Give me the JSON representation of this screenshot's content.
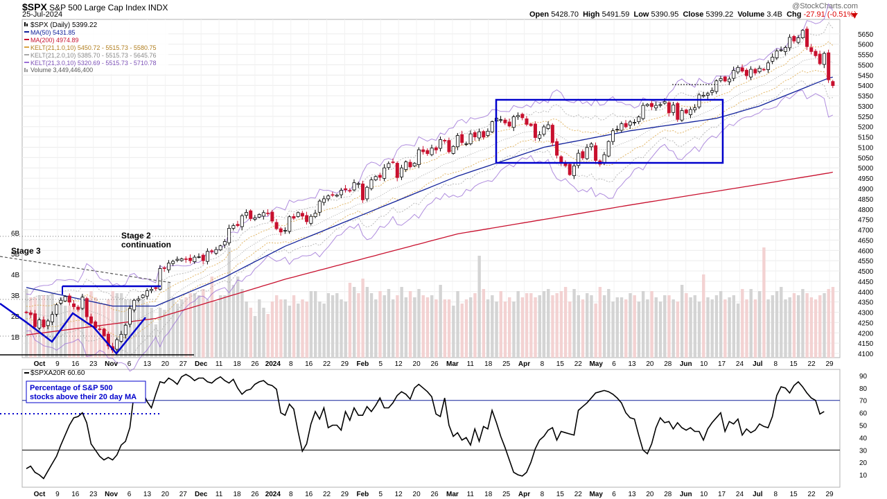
{
  "header": {
    "symbol": "$SPX",
    "name": "S&P 500 Large Cap Index",
    "exchange": "INDX",
    "date": "25-Jul-2024",
    "credit": "@StockCharts.com",
    "quote": {
      "open_label": "Open",
      "open": "5428.70",
      "high_label": "High",
      "high": "5491.59",
      "low_label": "Low",
      "low": "5390.95",
      "close_label": "Close",
      "close": "5399.22",
      "volume_label": "Volume",
      "volume": "3.4B",
      "chg_label": "Chg",
      "chg": "-27.91 (-0.51%)"
    }
  },
  "colors": {
    "up": "#000000",
    "down": "#c8102e",
    "ma50": "#10209a",
    "ma200": "#c8102e",
    "kelt1": "#d9a441",
    "kelt2": "#a8a8a8",
    "kelt3": "#9b6fd6",
    "box": "#0000cc",
    "vol_up": "#d4d4d4",
    "vol_down": "#f3d2d2",
    "breadth": "#000000"
  },
  "legend": [
    {
      "icon": "chart-icon",
      "text": "$SPX (Daily) 5399.22",
      "color": "#000000"
    },
    {
      "icon": "line-icon",
      "text": "MA(50) 5431.85",
      "color": "#10209a"
    },
    {
      "icon": "line-icon",
      "text": "MA(200) 4974.89",
      "color": "#c8102e"
    },
    {
      "icon": "line-icon",
      "text": "KELT(21,1.0,10) 5450.72 - 5515.73 - 5580.75",
      "color": "#d9a441"
    },
    {
      "icon": "line-icon",
      "text": "KELT(21,2.0,10) 5385.70 - 5515.73 - 5645.76",
      "color": "#a8a8a8"
    },
    {
      "icon": "line-icon",
      "text": "KELT(21,3.0,10) 5320.69 - 5515.73 - 5710.78",
      "color": "#9b6fd6"
    },
    {
      "icon": "volume-icon",
      "text": "Volume 3,449,446,400",
      "color": "#888888"
    }
  ],
  "annotations": {
    "stage3": "Stage 3",
    "stage2_line1": "Stage 2",
    "stage2_line2": "continuation",
    "breadth_note_line1": "Percentage of S&P 500",
    "breadth_note_line2": "stocks above their 20 day MA"
  },
  "chart_data": [
    {
      "type": "candlestick",
      "series_label": "$SPX (Daily)",
      "ylim": [
        4080,
        5720
      ],
      "y_ticks": [
        4100,
        4150,
        4200,
        4250,
        4300,
        4350,
        4400,
        4450,
        4500,
        4550,
        4600,
        4650,
        4700,
        4750,
        4800,
        4850,
        4900,
        4950,
        5000,
        5050,
        5100,
        5150,
        5200,
        5250,
        5300,
        5350,
        5400,
        5450,
        5500,
        5550,
        5600,
        5650
      ],
      "x_ticks": [
        "Oct",
        "9",
        "16",
        "23",
        "Nov",
        "6",
        "13",
        "20",
        "27",
        "Dec",
        "11",
        "18",
        "26",
        "2024",
        "8",
        "16",
        "22",
        "29",
        "Feb",
        "5",
        "12",
        "20",
        "26",
        "Mar",
        "11",
        "18",
        "25",
        "Apr",
        "8",
        "15",
        "22",
        "May",
        "6",
        "13",
        "20",
        "28",
        "Jun",
        "10",
        "17",
        "24",
        "Jul",
        "8",
        "15",
        "22",
        "29"
      ],
      "closes": [
        4299,
        4288,
        4230,
        4263,
        4229,
        4258,
        4289,
        4336,
        4358,
        4376,
        4349,
        4327,
        4314,
        4373,
        4278,
        4247,
        4224,
        4217,
        4186,
        4137,
        4117,
        4167,
        4193,
        4237,
        4318,
        4358,
        4365,
        4383,
        4404,
        4411,
        4415,
        4512,
        4514,
        4538,
        4547,
        4557,
        4559,
        4556,
        4550,
        4567,
        4569,
        4550,
        4595,
        4594,
        4604,
        4622,
        4643,
        4707,
        4720,
        4720,
        4768,
        4784,
        4754,
        4758,
        4774,
        4783,
        4781,
        4742,
        4705,
        4689,
        4697,
        4763,
        4756,
        4783,
        4766,
        4739,
        4765,
        4780,
        4839,
        4850,
        4864,
        4868,
        4868,
        4891,
        4894,
        4890,
        4928,
        4924,
        4845,
        4906,
        4942,
        4958,
        4954,
        5000,
        5021,
        5026,
        4953,
        5000,
        5029,
        5005,
        5022,
        5088,
        5078,
        5069,
        5096,
        5087,
        5137,
        5130,
        5078,
        5104,
        5157,
        5123,
        5117,
        5165,
        5150,
        5175,
        5149,
        5178,
        5224,
        5241,
        5234,
        5218,
        5203,
        5248,
        5254,
        5243,
        5211,
        5205,
        5147,
        5160,
        5199,
        5209,
        5123,
        5061,
        5023,
        5011,
        4967,
        5010,
        5071,
        5048,
        5099,
        5116,
        5036,
        5018,
        5064,
        5128,
        5180,
        5187,
        5214,
        5199,
        5223,
        5221,
        5247,
        5303,
        5308,
        5297,
        5303,
        5307,
        5321,
        5267,
        5305,
        5235,
        5278,
        5266,
        5283,
        5291,
        5354,
        5352,
        5360,
        5375,
        5422,
        5433,
        5421,
        5431,
        5473,
        5487,
        5469,
        5447,
        5478,
        5460,
        5483,
        5475,
        5509,
        5537,
        5567,
        5572,
        5584,
        5633,
        5615,
        5631,
        5667,
        5588,
        5564,
        5544,
        5505,
        5555,
        5427,
        5399
      ],
      "ma50_anchors": [
        [
          0,
          4420
        ],
        [
          20,
          4330
        ],
        [
          30,
          4330
        ],
        [
          46,
          4470
        ],
        [
          60,
          4620
        ],
        [
          80,
          4790
        ],
        [
          100,
          4960
        ],
        [
          120,
          5100
        ],
        [
          140,
          5180
        ],
        [
          160,
          5240
        ],
        [
          170,
          5300
        ],
        [
          186,
          5435
        ]
      ],
      "ma200_anchors": [
        [
          0,
          4190
        ],
        [
          30,
          4270
        ],
        [
          60,
          4460
        ],
        [
          100,
          4680
        ],
        [
          140,
          4820
        ],
        [
          170,
          4920
        ],
        [
          186,
          4975
        ]
      ]
    },
    {
      "type": "bar",
      "series_label": "Volume",
      "ylim": [
        0,
        7000000000
      ],
      "y_ticks": [
        "1B",
        "2B",
        "3B",
        "4B",
        "5B",
        "6B"
      ],
      "y_tick_values": [
        1000000000,
        2000000000,
        3000000000,
        4000000000,
        5000000000,
        6000000000
      ],
      "values": [
        3.3,
        2.9,
        2.9,
        3.0,
        3.0,
        3.0,
        3.1,
        2.4,
        2.9,
        2.5,
        2.5,
        2.6,
        2.4,
        3.0,
        2.6,
        3.2,
        2.9,
        2.6,
        2.6,
        2.8,
        3.2,
        3.1,
        3.1,
        2.8,
        2.8,
        2.6,
        2.7,
        2.8,
        2.6,
        2.4,
        1.6,
        2.4,
        2.3,
        3.6,
        2.9,
        2.6,
        2.8,
        2.9,
        3.1,
        3.1,
        3.0,
        3.3,
        2.8,
        3.9,
        2.7,
        3.0,
        3.0,
        5.3,
        3.5,
        3.9,
        3.3,
        2.7,
        2.4,
        2.0,
        2.8,
        2.4,
        2.1,
        2.7,
        3.0,
        2.8,
        2.8,
        2.5,
        3.0,
        2.6,
        2.8,
        2.7,
        3.2,
        3.2,
        2.7,
        2.6,
        3.1,
        3.0,
        3.1,
        2.8,
        2.7,
        3.6,
        3.4,
        3.1,
        3.8,
        3.4,
        3.1,
        2.8,
        3.2,
        3.0,
        3.3,
        2.8,
        3.0,
        3.4,
        2.9,
        3.2,
        2.9,
        3.3,
        3.0,
        2.9,
        3.0,
        2.8,
        3.5,
        2.8,
        2.8,
        2.5,
        3.2,
        2.6,
        2.8,
        2.9,
        3.1,
        4.9,
        3.3,
        2.8,
        3.0,
        2.7,
        3.2,
        2.7,
        2.9,
        2.7,
        3.2,
        2.9,
        3.1,
        3.1,
        2.9,
        3.0,
        3.2,
        3.3,
        3.0,
        3.1,
        3.2,
        3.4,
        2.7,
        3.3,
        3.0,
        2.8,
        3.1,
        3.0,
        2.6,
        3.4,
        3.0,
        3.3,
        2.7,
        2.9,
        2.9,
        2.8,
        3.1,
        3.0,
        2.7,
        3.2,
        2.8,
        3.2,
        2.9,
        2.7,
        3.0,
        3.0,
        2.8,
        2.7,
        3.5,
        3.1,
        2.9,
        3.0,
        2.7,
        4.0,
        2.9,
        2.8,
        3.0,
        3.2,
        2.8,
        2.9,
        3.0,
        2.6,
        3.3,
        2.8,
        3.3,
        2.8,
        3.2,
        5.3,
        2.8,
        3.0,
        3.2,
        3.4,
        2.8,
        2.9,
        3.1,
        3.0,
        3.3,
        3.1,
        2.9,
        2.8,
        3.0,
        3.1,
        3.3,
        3.4
      ]
    },
    {
      "type": "line",
      "series_label": "$SPXA20R",
      "value_text": "60.60",
      "ylim": [
        0,
        95
      ],
      "y_ticks": [
        10,
        20,
        30,
        40,
        50,
        60,
        70,
        80,
        90
      ],
      "reference_lines": [
        70,
        30
      ],
      "x_ticks": [
        "Oct",
        "9",
        "16",
        "23",
        "Nov",
        "6",
        "13",
        "20",
        "27",
        "Dec",
        "11",
        "18",
        "26",
        "2024",
        "8",
        "16",
        "22",
        "29",
        "Feb",
        "5",
        "12",
        "20",
        "26",
        "Mar",
        "11",
        "18",
        "25",
        "Apr",
        "8",
        "15",
        "22",
        "May",
        "6",
        "13",
        "20",
        "28",
        "Jun",
        "10",
        "17",
        "24",
        "Jul",
        "8",
        "15",
        "22",
        "29"
      ],
      "values": [
        15,
        17,
        12,
        10,
        7,
        13,
        19,
        25,
        34,
        42,
        50,
        56,
        57,
        60,
        52,
        35,
        30,
        25,
        22,
        24,
        22,
        26,
        34,
        37,
        48,
        76,
        80,
        77,
        69,
        64,
        75,
        85,
        84,
        88,
        86,
        83,
        89,
        91,
        89,
        86,
        88,
        88,
        85,
        84,
        87,
        89,
        86,
        84,
        87,
        80,
        75,
        78,
        79,
        83,
        85,
        86,
        83,
        82,
        79,
        60,
        58,
        67,
        63,
        45,
        29,
        35,
        51,
        61,
        55,
        64,
        48,
        50,
        50,
        46,
        61,
        54,
        64,
        58,
        58,
        65,
        61,
        66,
        72,
        64,
        64,
        68,
        74,
        77,
        75,
        71,
        80,
        83,
        80,
        77,
        73,
        59,
        57,
        72,
        50,
        41,
        44,
        38,
        40,
        34,
        47,
        37,
        49,
        47,
        62,
        52,
        41,
        32,
        22,
        12,
        10,
        9,
        12,
        20,
        31,
        38,
        41,
        46,
        48,
        38,
        45,
        44,
        43,
        42,
        62,
        65,
        68,
        72,
        76,
        77,
        78,
        77,
        75,
        72,
        68,
        60,
        56,
        55,
        42,
        30,
        27,
        35,
        48,
        56,
        52,
        53,
        47,
        52,
        48,
        46,
        48,
        45,
        45,
        38,
        47,
        52,
        56,
        60,
        45,
        53,
        51,
        55,
        42,
        47,
        44,
        46,
        51,
        49,
        48,
        57,
        74,
        81,
        80,
        76,
        82,
        85,
        81,
        76,
        72,
        70,
        59,
        61
      ]
    }
  ]
}
